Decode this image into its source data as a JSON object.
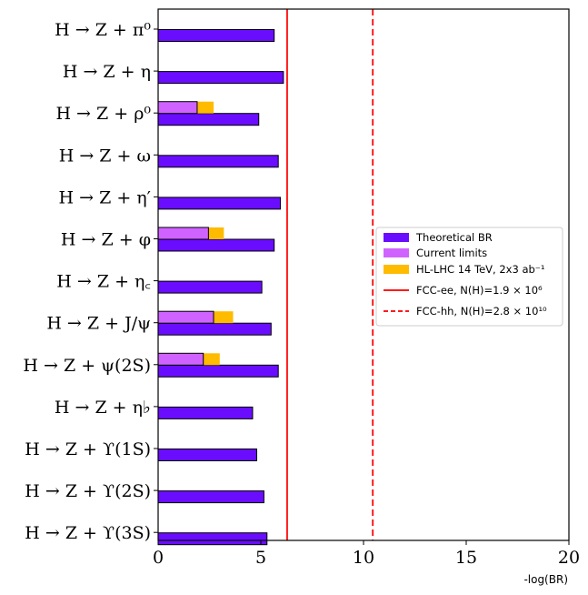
{
  "chart_data": {
    "type": "bar",
    "orientation": "horizontal",
    "xlabel": "-log(BR)",
    "xlim": [
      0,
      20
    ],
    "xticks": [
      0,
      5,
      10,
      15,
      20
    ],
    "categories": [
      "H → Z + π⁰",
      "H → Z + η",
      "H → Z + ρ⁰",
      "H → Z + ω",
      "H → Z + η′",
      "H → Z + φ",
      "H → Z + η꜀",
      "H → Z + J/ψ",
      "H → Z + ψ(2S)",
      "H → Z + η♭",
      "H → Z + ϒ(1S)",
      "H → Z + ϒ(2S)",
      "H → Z + ϒ(3S)"
    ],
    "series": [
      {
        "name": "Theoretical BR",
        "color": "#6a0dff",
        "values": [
          5.65,
          6.1,
          4.9,
          5.85,
          5.95,
          5.65,
          5.05,
          5.5,
          5.85,
          4.6,
          4.8,
          5.15,
          5.3
        ]
      },
      {
        "name": "Current limits",
        "color": "#d063ff",
        "values": [
          null,
          null,
          1.9,
          null,
          null,
          2.45,
          null,
          2.7,
          2.2,
          null,
          null,
          null,
          null
        ]
      },
      {
        "name": "HL-LHC 14 TeV, 2x3 ab⁻¹",
        "color": "#ffbb00",
        "values": [
          null,
          null,
          2.7,
          null,
          null,
          3.2,
          null,
          3.65,
          3.0,
          null,
          null,
          null,
          null
        ]
      }
    ],
    "reference_lines": [
      {
        "name": "FCC-ee, N(H)=1.9 × 10⁶",
        "x": 6.28,
        "color": "#ff1a1a",
        "style": "solid"
      },
      {
        "name": "FCC-hh, N(H)=2.8 × 10¹⁰",
        "x": 10.45,
        "color": "#ff1a1a",
        "style": "dashed"
      }
    ],
    "legend_position": "center-right"
  }
}
